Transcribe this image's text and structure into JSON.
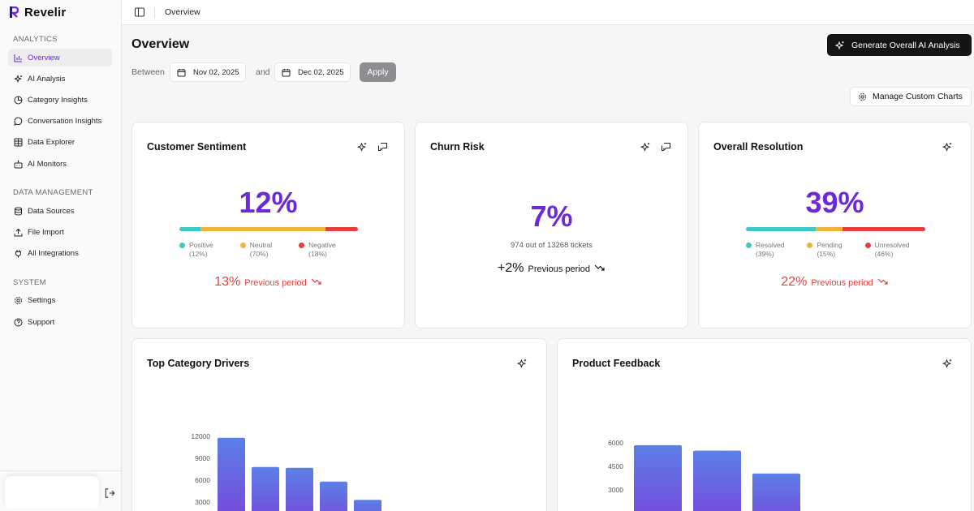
{
  "app": {
    "name": "Revelir"
  },
  "sidebar": {
    "sections": [
      {
        "title": "ANALYTICS",
        "items": [
          {
            "label": "Overview",
            "icon": "bar-chart-icon",
            "active": true
          },
          {
            "label": "AI Analysis",
            "icon": "sparkles-icon"
          },
          {
            "label": "Category Insights",
            "icon": "pie-chart-icon"
          },
          {
            "label": "Conversation Insights",
            "icon": "message-circle-icon"
          },
          {
            "label": "Data Explorer",
            "icon": "table-icon"
          },
          {
            "label": "AI Monitors",
            "icon": "bot-icon"
          }
        ]
      },
      {
        "title": "DATA MANAGEMENT",
        "items": [
          {
            "label": "Data Sources",
            "icon": "database-icon"
          },
          {
            "label": "File Import",
            "icon": "upload-icon"
          },
          {
            "label": "All Integrations",
            "icon": "plug-icon"
          }
        ]
      },
      {
        "title": "SYSTEM",
        "items": [
          {
            "label": "Settings",
            "icon": "gear-icon"
          },
          {
            "label": "Support",
            "icon": "help-circle-icon"
          }
        ]
      }
    ]
  },
  "topbar": {
    "breadcrumb": "Overview"
  },
  "header": {
    "title": "Overview",
    "generate_label": "Generate Overall AI Analysis",
    "between_label": "Between",
    "start_date": "Nov 02, 2025",
    "and_label": "and",
    "end_date": "Dec 02, 2025",
    "apply_label": "Apply",
    "manage_label": "Manage Custom Charts"
  },
  "cards": {
    "sentiment": {
      "title": "Customer Sentiment",
      "value": "12%",
      "legend": [
        {
          "label": "Positive",
          "pct": "(12%)",
          "color": "#3ec8c6",
          "share": 12
        },
        {
          "label": "Neutral",
          "pct": "(70%)",
          "color": "#f0b43c",
          "share": 70
        },
        {
          "label": "Negative",
          "pct": "(18%)",
          "color": "#e53e3e",
          "share": 18
        }
      ],
      "prev_value": "13%",
      "prev_label": "Previous period"
    },
    "churn": {
      "title": "Churn Risk",
      "value": "7%",
      "subtitle": "974 out of 13268 tickets",
      "prev_value": "+2%",
      "prev_label": "Previous period"
    },
    "resolution": {
      "title": "Overall Resolution",
      "value": "39%",
      "legend": [
        {
          "label": "Resolved",
          "pct": "(39%)",
          "color": "#3ec8c6",
          "share": 39
        },
        {
          "label": "Pending",
          "pct": "(15%)",
          "color": "#f0b43c",
          "share": 15
        },
        {
          "label": "Unresolved",
          "pct": "(46%)",
          "color": "#e53e3e",
          "share": 46
        }
      ],
      "prev_value": "22%",
      "prev_label": "Previous period"
    }
  },
  "chart_data": [
    {
      "type": "bar",
      "title": "Top Category Drivers",
      "yticks": [
        12000,
        9000,
        6000,
        3000
      ],
      "values": [
        11800,
        7800,
        7700,
        5800,
        3300
      ]
    },
    {
      "type": "bar",
      "title": "Product Feedback",
      "yticks": [
        6000,
        4500,
        3000
      ],
      "values": [
        5850,
        5500,
        4050
      ]
    }
  ],
  "colors": {
    "accent": "#6d28d9",
    "bar_top": "#5b7fe6",
    "bar_bottom": "#7b3fd9"
  }
}
